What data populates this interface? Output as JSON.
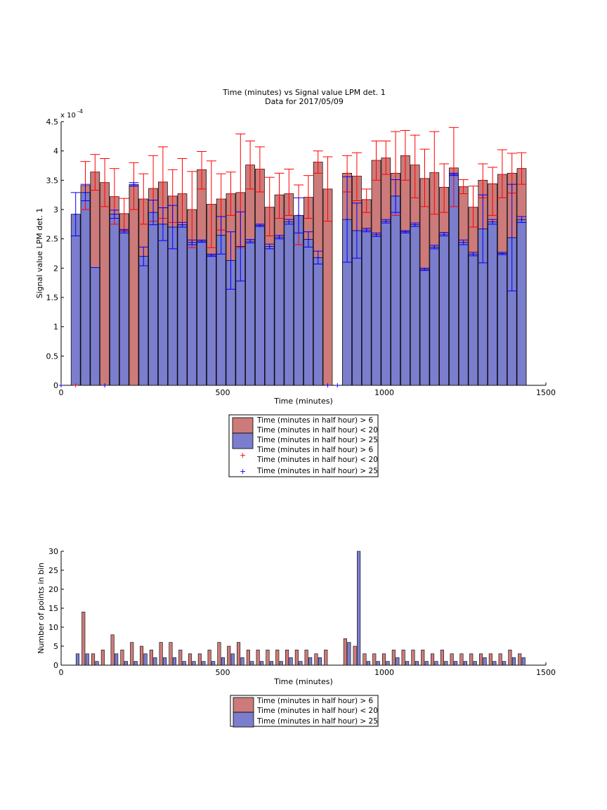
{
  "colors": {
    "red_fill": "#cc7b7a",
    "blue_fill": "#7b7dcd",
    "red_err": "#ff0000",
    "blue_err": "#0000ff",
    "edge": "#000000"
  },
  "chart_data": [
    {
      "type": "bar",
      "title": "Time (minutes) vs Signal value LPM det. 1",
      "subtitle": "Data for 2017/05/09",
      "xlabel": "Time (minutes)",
      "ylabel": "Signal value LPM det. 1",
      "exponent_label": "x 10",
      "exponent_power": "-4",
      "xlim": [
        0,
        1500
      ],
      "ylim": [
        0,
        4.5
      ],
      "xticks": [
        "0",
        "500",
        "1000",
        "1500"
      ],
      "yticks": [
        "0",
        "0.5",
        "1",
        "1.5",
        "2",
        "2.5",
        "3",
        "3.5",
        "4",
        "4.5"
      ],
      "legend": {
        "placement": "below",
        "entries": [
          "Time (minutes in half hour) > 6",
          "Time (minutes in half hour) < 20",
          "Time (minutes in half hour) > 25",
          "Time (minutes in half hour) > 6",
          "Time (minutes in half hour) < 20",
          "Time (minutes in half hour) > 25"
        ]
      },
      "series": [
        {
          "name": "Time (minutes in half hour) > 6 / Time (minutes in half hour) < 20",
          "x": [
            45,
            75,
            105,
            135,
            165,
            195,
            225,
            255,
            285,
            315,
            345,
            375,
            405,
            435,
            465,
            495,
            525,
            555,
            585,
            615,
            645,
            675,
            705,
            735,
            765,
            795,
            825,
            885,
            915,
            945,
            975,
            1005,
            1035,
            1065,
            1095,
            1125,
            1155,
            1185,
            1215,
            1245,
            1275,
            1305,
            1335,
            1365,
            1395,
            1425
          ],
          "values": [
            0,
            3.41,
            3.64,
            3.46,
            3.22,
            2.93,
            3.4,
            3.18,
            3.36,
            3.47,
            3.23,
            3.27,
            3.0,
            3.68,
            3.09,
            3.18,
            3.27,
            3.29,
            3.76,
            3.69,
            3.04,
            3.25,
            3.27,
            2.9,
            3.21,
            3.81,
            3.35,
            3.62,
            3.57,
            3.17,
            3.84,
            3.88,
            3.62,
            3.92,
            3.76,
            3.53,
            3.63,
            3.38,
            3.71,
            3.39,
            3.04,
            3.5,
            3.44,
            3.6,
            3.62,
            3.7
          ],
          "err_low": [
            0,
            3.0,
            3.33,
            3.05,
            2.75,
            2.65,
            3.0,
            2.75,
            2.8,
            2.85,
            2.78,
            2.7,
            2.35,
            3.35,
            2.35,
            2.65,
            2.9,
            2.35,
            3.35,
            3.3,
            2.55,
            2.85,
            2.9,
            2.4,
            2.85,
            3.62,
            2.8,
            3.3,
            3.15,
            2.95,
            3.5,
            3.6,
            2.9,
            3.5,
            3.2,
            3.05,
            2.92,
            2.95,
            3.05,
            3.27,
            2.7,
            3.2,
            2.9,
            3.2,
            3.28,
            3.43
          ],
          "err_high": [
            0,
            3.82,
            3.94,
            3.87,
            3.7,
            3.19,
            3.8,
            3.61,
            3.92,
            4.07,
            3.68,
            3.87,
            3.65,
            3.99,
            3.83,
            3.61,
            3.64,
            4.29,
            4.17,
            4.07,
            3.55,
            3.62,
            3.69,
            3.42,
            3.58,
            4.0,
            3.9,
            3.92,
            3.97,
            3.35,
            4.17,
            4.17,
            4.33,
            4.35,
            4.27,
            4.03,
            4.33,
            3.78,
            4.4,
            3.51,
            3.4,
            3.78,
            3.72,
            4.02,
            3.96,
            3.97
          ]
        },
        {
          "name": "Time (minutes in half hour) > 25",
          "x": [
            45,
            75,
            105,
            135,
            165,
            195,
            225,
            255,
            285,
            315,
            345,
            375,
            405,
            435,
            465,
            495,
            525,
            555,
            585,
            615,
            645,
            675,
            705,
            735,
            765,
            795,
            825,
            885,
            915,
            945,
            975,
            1005,
            1035,
            1065,
            1095,
            1125,
            1155,
            1185,
            1215,
            1245,
            1275,
            1305,
            1335,
            1365,
            1395,
            1425
          ],
          "values": [
            2.92,
            3.29,
            2.01,
            0,
            2.92,
            2.63,
            3.43,
            2.2,
            2.95,
            2.75,
            2.7,
            2.74,
            2.44,
            2.46,
            2.22,
            2.56,
            2.13,
            2.37,
            2.46,
            2.73,
            2.37,
            2.53,
            2.79,
            2.9,
            2.49,
            2.18,
            0,
            2.83,
            2.64,
            2.65,
            2.57,
            2.8,
            3.23,
            2.62,
            2.74,
            1.98,
            2.36,
            2.58,
            3.6,
            2.44,
            2.24,
            2.67,
            2.79,
            2.25,
            2.52,
            2.83
          ],
          "err_low": [
            2.55,
            3.15,
            2.01,
            0,
            2.85,
            2.6,
            3.4,
            2.04,
            2.74,
            2.47,
            2.33,
            2.7,
            2.4,
            2.44,
            2.2,
            2.24,
            1.64,
            1.78,
            2.43,
            2.71,
            2.33,
            2.5,
            2.75,
            2.6,
            2.36,
            2.07,
            0,
            2.1,
            2.17,
            2.62,
            2.54,
            2.77,
            2.95,
            2.6,
            2.71,
            1.96,
            2.33,
            2.55,
            3.58,
            2.4,
            2.21,
            2.09,
            2.75,
            2.23,
            1.61,
            2.78
          ],
          "err_high": [
            3.29,
            3.43,
            2.01,
            0,
            2.99,
            2.66,
            3.46,
            2.36,
            3.16,
            3.03,
            3.07,
            2.78,
            2.48,
            2.48,
            2.24,
            2.88,
            2.62,
            2.96,
            2.49,
            2.75,
            2.41,
            2.56,
            2.83,
            3.2,
            2.62,
            2.29,
            0,
            3.56,
            3.11,
            2.68,
            2.6,
            2.83,
            3.51,
            2.64,
            2.77,
            2.0,
            2.39,
            2.61,
            3.62,
            2.48,
            2.27,
            3.25,
            2.83,
            2.27,
            3.43,
            2.88
          ]
        }
      ],
      "zero_markers_red_x": [
        45,
        825
      ],
      "zero_markers_blue_x": [
        0,
        135,
        825,
        855
      ]
    },
    {
      "type": "bar",
      "xlabel": "Time (minutes)",
      "ylabel": "Number of points in bin",
      "xlim": [
        0,
        1500
      ],
      "ylim": [
        0,
        30
      ],
      "xticks": [
        "0",
        "500",
        "1000",
        "1500"
      ],
      "yticks": [
        "0",
        "5",
        "10",
        "15",
        "20",
        "25",
        "30"
      ],
      "legend": {
        "placement": "below",
        "entries": [
          "Time (minutes in half hour) > 6",
          "Time (minutes in half hour) < 20",
          "Time (minutes in half hour) > 25"
        ]
      },
      "series": [
        {
          "name": "Time (minutes in half hour) > 6 / Time (minutes in half hour) < 20",
          "x": [
            45,
            75,
            105,
            135,
            165,
            195,
            225,
            255,
            285,
            315,
            345,
            375,
            405,
            435,
            465,
            495,
            525,
            555,
            585,
            615,
            645,
            675,
            705,
            735,
            765,
            795,
            825,
            885,
            915,
            945,
            975,
            1005,
            1035,
            1065,
            1095,
            1125,
            1155,
            1185,
            1215,
            1245,
            1275,
            1305,
            1335,
            1365,
            1395,
            1425
          ],
          "values": [
            0,
            14,
            3,
            4,
            8,
            4,
            6,
            5,
            4,
            6,
            6,
            4,
            3,
            3,
            4,
            6,
            5,
            6,
            4,
            4,
            4,
            4,
            4,
            4,
            4,
            3,
            4,
            7,
            5,
            3,
            3,
            3,
            4,
            4,
            4,
            4,
            3,
            4,
            3,
            3,
            3,
            3,
            3,
            3,
            4,
            3
          ]
        },
        {
          "name": "Time (minutes in half hour) > 25",
          "x": [
            45,
            75,
            105,
            135,
            165,
            195,
            225,
            255,
            285,
            315,
            345,
            375,
            405,
            435,
            465,
            495,
            525,
            555,
            585,
            615,
            645,
            675,
            705,
            735,
            765,
            795,
            825,
            885,
            915,
            945,
            975,
            1005,
            1035,
            1065,
            1095,
            1125,
            1155,
            1185,
            1215,
            1245,
            1275,
            1305,
            1335,
            1365,
            1395,
            1425
          ],
          "values": [
            3,
            3,
            1,
            0,
            3,
            1,
            1,
            3,
            2,
            2,
            2,
            1,
            1,
            1,
            1,
            2,
            3,
            2,
            1,
            1,
            1,
            1,
            2,
            1,
            2,
            2,
            0,
            6,
            30,
            1,
            1,
            1,
            2,
            1,
            1,
            1,
            1,
            1,
            1,
            1,
            1,
            2,
            1,
            1,
            2,
            2
          ]
        }
      ]
    }
  ]
}
